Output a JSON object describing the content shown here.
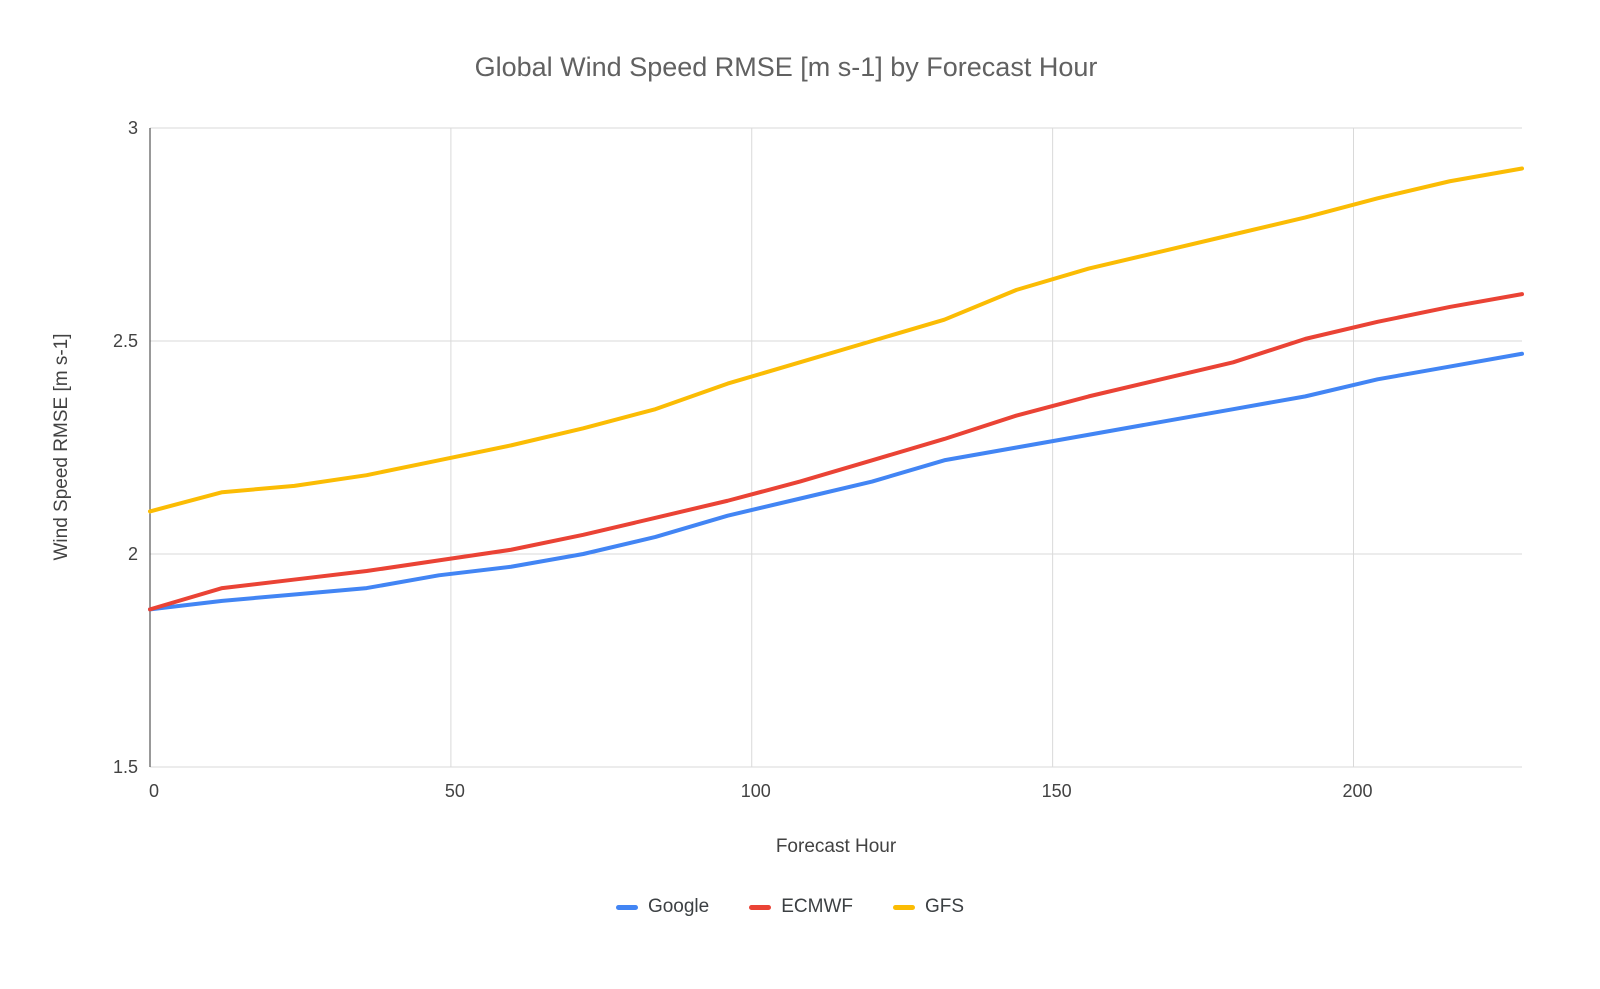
{
  "chart_data": {
    "type": "line",
    "title": "Global Wind Speed RMSE [m s-1] by Forecast Hour",
    "xlabel": "Forecast Hour",
    "ylabel": "Wind Speed RMSE [m s-1]",
    "xlim": [
      0,
      228
    ],
    "ylim": [
      1.5,
      3
    ],
    "x_ticks": [
      0,
      50,
      100,
      150,
      200
    ],
    "y_ticks": [
      1.5,
      2,
      2.5,
      3
    ],
    "grid": true,
    "legend_position": "bottom",
    "x": [
      0,
      12,
      24,
      36,
      48,
      60,
      72,
      84,
      96,
      108,
      120,
      132,
      144,
      156,
      168,
      180,
      192,
      204,
      216,
      228
    ],
    "series": [
      {
        "name": "Google",
        "color": "#4285F4",
        "values": [
          1.87,
          1.89,
          1.905,
          1.92,
          1.95,
          1.97,
          2.0,
          2.04,
          2.09,
          2.13,
          2.17,
          2.22,
          2.25,
          2.28,
          2.31,
          2.34,
          2.37,
          2.41,
          2.44,
          2.47
        ]
      },
      {
        "name": "ECMWF",
        "color": "#EA4335",
        "values": [
          1.87,
          1.92,
          1.94,
          1.96,
          1.985,
          2.01,
          2.045,
          2.085,
          2.125,
          2.17,
          2.22,
          2.27,
          2.325,
          2.37,
          2.41,
          2.45,
          2.505,
          2.545,
          2.58,
          2.61
        ]
      },
      {
        "name": "GFS",
        "color": "#FBBC04",
        "values": [
          2.1,
          2.145,
          2.16,
          2.185,
          2.22,
          2.255,
          2.295,
          2.34,
          2.4,
          2.45,
          2.5,
          2.55,
          2.62,
          2.67,
          2.71,
          2.75,
          2.79,
          2.835,
          2.875,
          2.905
        ]
      }
    ],
    "colors": {
      "grid": "#d9d9d9",
      "axis": "#333333",
      "tick_label": "#424242",
      "title": "#616161",
      "background": "#ffffff"
    }
  }
}
